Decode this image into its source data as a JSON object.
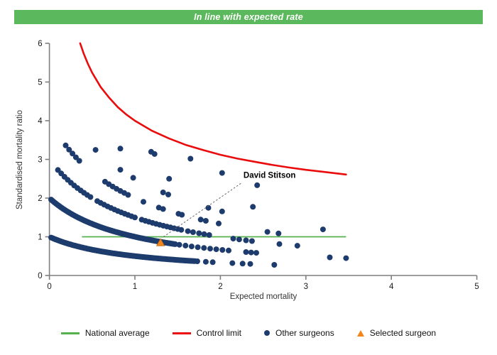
{
  "banner": {
    "text": "In line with expected rate",
    "bg": "#5cb85c",
    "text_color": "#ffffff"
  },
  "chart_data": {
    "type": "scatter",
    "title": "In line with expected rate",
    "xlabel": "Expected mortality",
    "ylabel": "Standardised mortality ratio",
    "xlim": [
      0,
      5
    ],
    "ylim": [
      0,
      6
    ],
    "x_ticks": [
      0,
      1,
      2,
      3,
      4,
      5
    ],
    "y_ticks": [
      0,
      1,
      2,
      3,
      4,
      5,
      6
    ],
    "grid": "off",
    "axis_color": "#7f7f7f",
    "tick_label_color": "#1a1a1a",
    "national_average": {
      "y": 1,
      "x_from": 0.38,
      "x_to": 3.47,
      "color": "#55b14e",
      "width": 1.8
    },
    "control_limit": {
      "color": "#ea0c0c",
      "width": 2.6,
      "points": [
        [
          0.36,
          6.0
        ],
        [
          0.4,
          5.74
        ],
        [
          0.45,
          5.47
        ],
        [
          0.5,
          5.24
        ],
        [
          0.6,
          4.87
        ],
        [
          0.7,
          4.59
        ],
        [
          0.8,
          4.35
        ],
        [
          0.9,
          4.16
        ],
        [
          1.0,
          4.0
        ],
        [
          1.2,
          3.74
        ],
        [
          1.4,
          3.54
        ],
        [
          1.6,
          3.37
        ],
        [
          1.8,
          3.24
        ],
        [
          2.0,
          3.12
        ],
        [
          2.2,
          3.02
        ],
        [
          2.4,
          2.94
        ],
        [
          2.6,
          2.86
        ],
        [
          2.8,
          2.79
        ],
        [
          3.0,
          2.73
        ],
        [
          3.2,
          2.68
        ],
        [
          3.47,
          2.61
        ]
      ]
    },
    "other_surgeons": {
      "color": "#1d3c6d",
      "radius": 4,
      "rule": "smr = n / (1 + expected)",
      "bands": [
        {
          "n": 1,
          "dense": [
            [
              0.02,
              1.7,
              0.012
            ]
          ],
          "points": [
            1.73,
            1.83,
            1.91,
            2.14,
            2.26,
            2.35,
            2.63
          ]
        },
        {
          "n": 2,
          "dense": [
            [
              0.02,
              1.48,
              0.012
            ],
            [
              1.52,
              2.1,
              0.072
            ]
          ],
          "points": [
            2.3,
            2.36,
            2.42,
            3.28,
            3.47
          ]
        },
        {
          "n": 3,
          "dense": [
            [
              0.1,
              0.48,
              0.038
            ],
            [
              0.56,
              1.02,
              0.04
            ],
            [
              1.08,
              1.55,
              0.042
            ]
          ],
          "points": [
            1.62,
            1.68,
            1.75,
            1.81,
            1.87,
            2.15,
            2.22,
            2.3,
            2.37,
            2.69,
            2.9
          ]
        },
        {
          "n": 4,
          "dense": [
            [
              0.19,
              0.38,
              0.04
            ],
            [
              0.65,
              0.92,
              0.045
            ]
          ],
          "points": [
            1.1,
            1.28,
            1.33,
            1.51,
            1.55,
            1.77,
            1.83,
            1.98,
            2.55,
            2.68
          ]
        },
        {
          "n": 5,
          "points": [
            0.54,
            0.83,
            0.98,
            1.33,
            1.39,
            1.86,
            2.02,
            3.2
          ]
        },
        {
          "n": 6,
          "points": [
            0.83,
            1.4,
            2.38
          ]
        },
        {
          "n": 7,
          "points": [
            1.19,
            1.23
          ]
        },
        {
          "n": 8,
          "points": [
            1.65,
            2.02,
            2.43
          ]
        }
      ]
    },
    "selected_surgeon": {
      "name": "David Stitson",
      "x": 1.3,
      "y": 0.85,
      "color": "#f0861c",
      "label_x": 2.27,
      "label_y": 2.52,
      "leader_from": [
        2.24,
        2.38
      ],
      "leader_to": [
        1.315,
        0.97
      ]
    },
    "legend": [
      {
        "label": "National average",
        "swatch": "line",
        "color": "#55b14e"
      },
      {
        "label": "Control limit",
        "swatch": "line",
        "color": "#ea0c0c"
      },
      {
        "label": "Other surgeons",
        "swatch": "dot",
        "color": "#1d3c6d"
      },
      {
        "label": "Selected surgeon",
        "swatch": "triangle",
        "color": "#f0861c"
      }
    ]
  }
}
